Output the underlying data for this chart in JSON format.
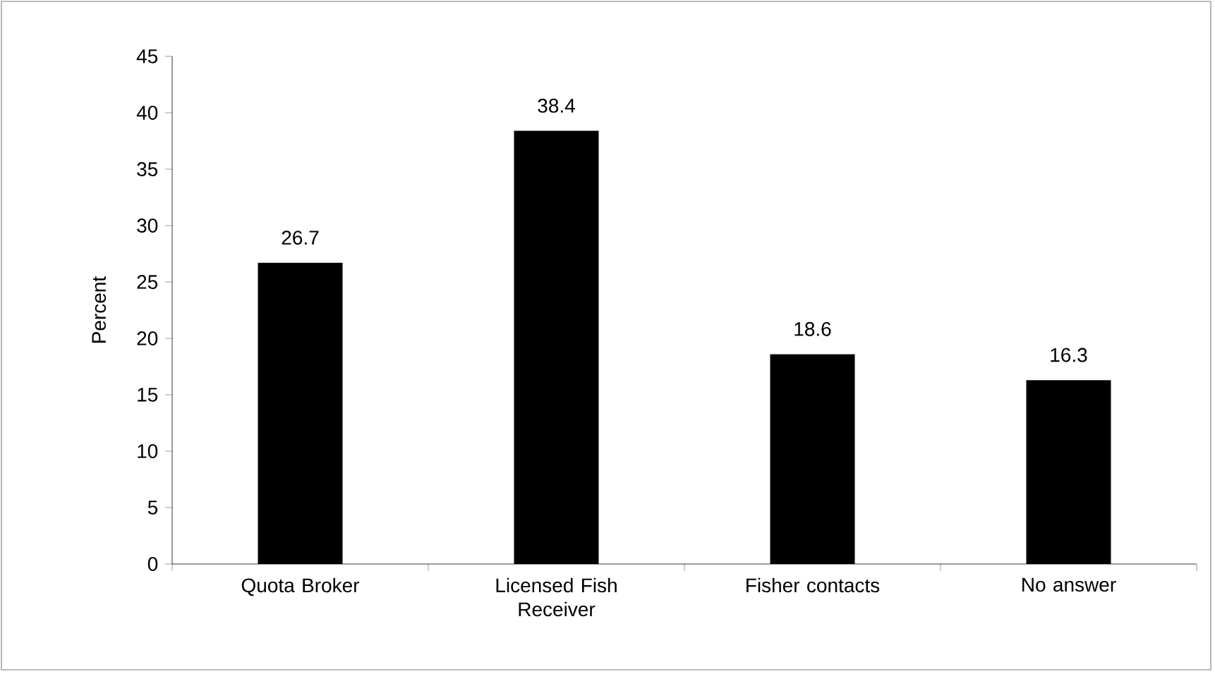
{
  "chart_data": {
    "type": "bar",
    "ylabel": "Percent",
    "categories": [
      "Quota Broker",
      "Licensed Fish Receiver",
      "Fisher contacts",
      "No answer"
    ],
    "values": [
      26.7,
      38.4,
      18.6,
      16.3
    ],
    "color": "#000000",
    "ylim": [
      0,
      45
    ],
    "yticks": [
      0,
      5,
      10,
      15,
      20,
      25,
      30,
      35,
      40,
      45
    ],
    "data_labels": true
  }
}
